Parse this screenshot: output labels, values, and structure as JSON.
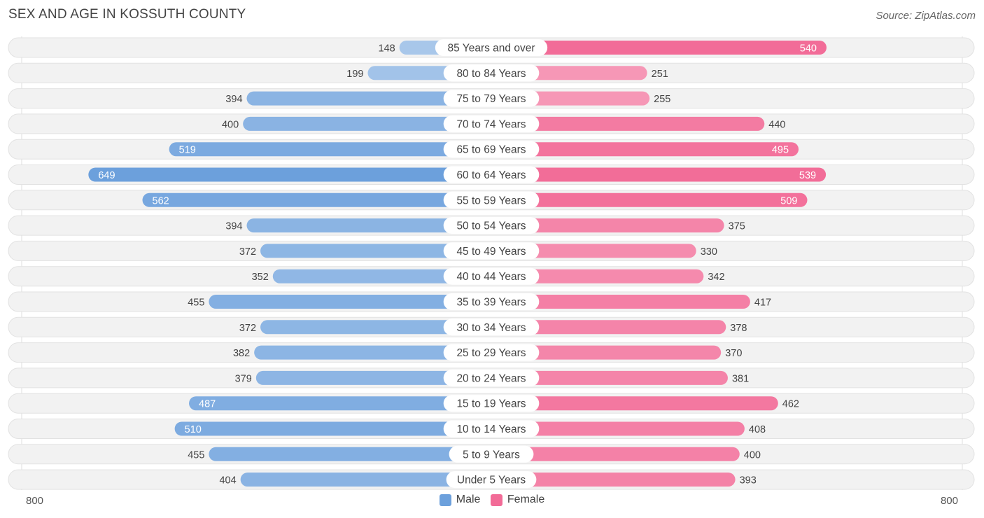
{
  "chart_data": {
    "type": "bar",
    "orientation": "horizontal-diverging",
    "title": "SEX AND AGE IN KOSSUTH COUNTY",
    "source": "Source: ZipAtlas.com",
    "categories": [
      "85 Years and over",
      "80 to 84 Years",
      "75 to 79 Years",
      "70 to 74 Years",
      "65 to 69 Years",
      "60 to 64 Years",
      "55 to 59 Years",
      "50 to 54 Years",
      "45 to 49 Years",
      "40 to 44 Years",
      "35 to 39 Years",
      "30 to 34 Years",
      "25 to 29 Years",
      "20 to 24 Years",
      "15 to 19 Years",
      "10 to 14 Years",
      "5 to 9 Years",
      "Under 5 Years"
    ],
    "series": [
      {
        "name": "Male",
        "color": "#6ca0dc",
        "values": [
          148,
          199,
          394,
          400,
          519,
          649,
          562,
          394,
          372,
          352,
          455,
          372,
          382,
          379,
          487,
          510,
          455,
          404
        ]
      },
      {
        "name": "Female",
        "color": "#f26b97",
        "values": [
          540,
          251,
          255,
          440,
          495,
          539,
          509,
          375,
          330,
          342,
          417,
          378,
          370,
          381,
          462,
          408,
          400,
          393
        ]
      }
    ],
    "axis_min_label": "800",
    "axis_max_label": "800",
    "axis_max": 800,
    "legend_position": "bottom-center"
  }
}
